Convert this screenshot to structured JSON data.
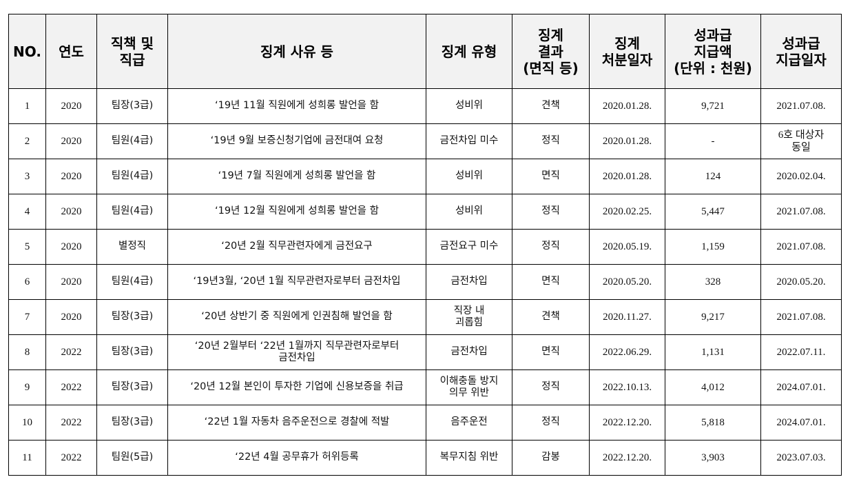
{
  "headers": [
    "NO.",
    "연도",
    "직책 및\n직급",
    "징계 사유 등",
    "징계 유형",
    "징계\n결과\n(면직 등)",
    "징계\n처분일자",
    "성과급\n지급액\n(단위 : 천원)",
    "성과급\n지급일자"
  ],
  "rows": [
    [
      "1",
      "2020",
      "팀장(3급)",
      "‘19년 11월 직원에게 성희롱 발언을 함",
      "성비위",
      "견책",
      "2020.01.28.",
      "9,721",
      "2021.07.08."
    ],
    [
      "2",
      "2020",
      "팀원(4급)",
      "‘19년 9월 보증신청기업에 금전대여 요청",
      "금전차입 미수",
      "정직",
      "2020.01.28.",
      "-",
      "6호 대상자\n동일"
    ],
    [
      "3",
      "2020",
      "팀원(4급)",
      "‘19년 7월 직원에게 성희롱 발언을 함",
      "성비위",
      "면직",
      "2020.01.28.",
      "124",
      "2020.02.04."
    ],
    [
      "4",
      "2020",
      "팀원(4급)",
      "‘19년 12월 직원에게 성희롱 발언을 함",
      "성비위",
      "정직",
      "2020.02.25.",
      "5,447",
      "2021.07.08."
    ],
    [
      "5",
      "2020",
      "별정직",
      "‘20년 2월 직무관련자에게 금전요구",
      "금전요구 미수",
      "정직",
      "2020.05.19.",
      "1,159",
      "2021.07.08."
    ],
    [
      "6",
      "2020",
      "팀원(4급)",
      "‘19년3월, ‘20년 1월 직무관련자로부터 금전차입",
      "금전차입",
      "면직",
      "2020.05.20.",
      "328",
      "2020.05.20."
    ],
    [
      "7",
      "2020",
      "팀장(3급)",
      "‘20년 상반기 중 직원에게 인권침해 발언을 함",
      "직장 내\n괴롭힘",
      "견책",
      "2020.11.27.",
      "9,217",
      "2021.07.08."
    ],
    [
      "8",
      "2022",
      "팀장(3급)",
      "‘20년 2월부터 ‘22년 1월까지 직무관련자로부터\n금전차입",
      "금전차입",
      "면직",
      "2022.06.29.",
      "1,131",
      "2022.07.11."
    ],
    [
      "9",
      "2022",
      "팀장(3급)",
      "‘20년 12월 본인이 투자한 기업에 신용보증을 취급",
      "이해충돌 방지\n의무 위반",
      "정직",
      "2022.10.13.",
      "4,012",
      "2024.07.01."
    ],
    [
      "10",
      "2022",
      "팀장(3급)",
      "‘22년 1월 자동차 음주운전으로 경찰에 적발",
      "음주운전",
      "정직",
      "2022.12.20.",
      "5,818",
      "2024.07.01."
    ],
    [
      "11",
      "2022",
      "팀원(5급)",
      "‘22년 4월 공무휴가 허위등록",
      "복무지침 위반",
      "감봉",
      "2022.12.20.",
      "3,903",
      "2023.07.03."
    ]
  ]
}
